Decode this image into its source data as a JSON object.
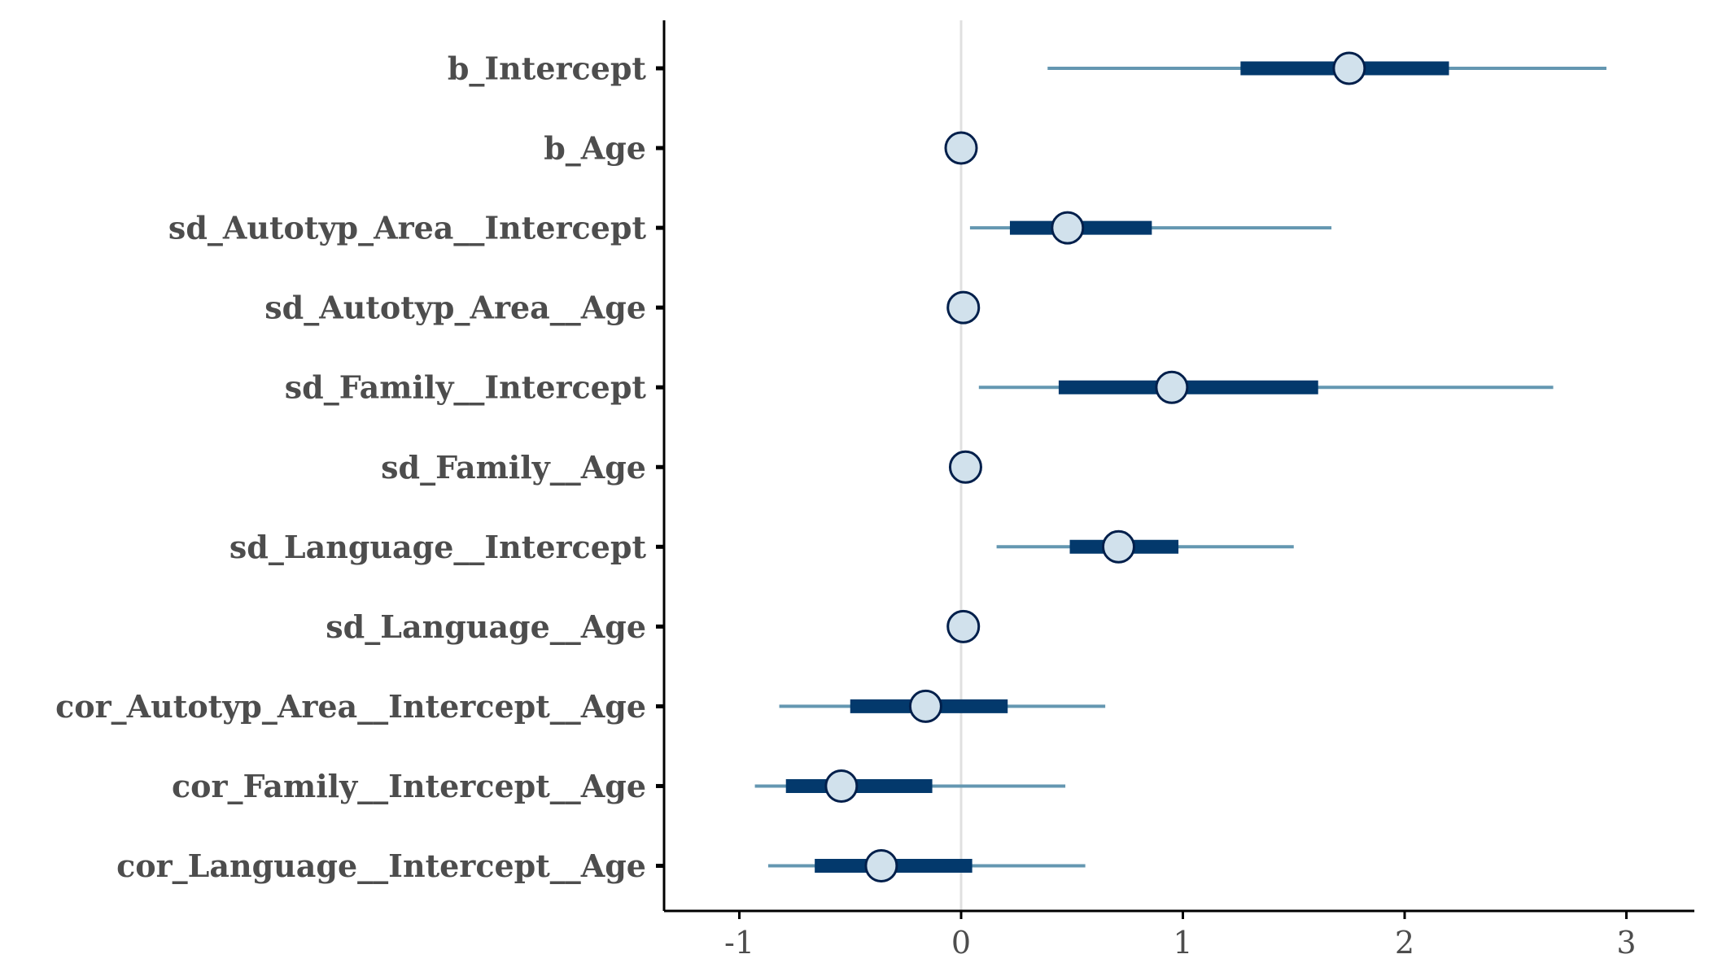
{
  "chart_data": {
    "type": "interval",
    "title": "",
    "xlabel": "",
    "ylabel": "",
    "xlim": [
      -1.35,
      3.3
    ],
    "x_ticks": [
      -1,
      0,
      1,
      2,
      3
    ],
    "x_tick_labels": [
      "-1",
      "0",
      "1",
      "2",
      "3"
    ],
    "reference_line": 0,
    "grid": false,
    "parameters": [
      {
        "label": "b_Intercept",
        "median": 1.75,
        "inner": [
          1.26,
          2.2
        ],
        "outer": [
          0.39,
          2.91
        ]
      },
      {
        "label": "b_Age",
        "median": 0.0,
        "inner": [
          0.0,
          0.0
        ],
        "outer": [
          0.0,
          0.0
        ]
      },
      {
        "label": "sd_Autotyp_Area__Intercept",
        "median": 0.48,
        "inner": [
          0.22,
          0.86
        ],
        "outer": [
          0.04,
          1.67
        ]
      },
      {
        "label": "sd_Autotyp_Area__Age",
        "median": 0.01,
        "inner": [
          0.01,
          0.01
        ],
        "outer": [
          0.01,
          0.01
        ]
      },
      {
        "label": "sd_Family__Intercept",
        "median": 0.95,
        "inner": [
          0.44,
          1.61
        ],
        "outer": [
          0.08,
          2.67
        ]
      },
      {
        "label": "sd_Family__Age",
        "median": 0.02,
        "inner": [
          0.02,
          0.02
        ],
        "outer": [
          0.02,
          0.02
        ]
      },
      {
        "label": "sd_Language__Intercept",
        "median": 0.71,
        "inner": [
          0.49,
          0.98
        ],
        "outer": [
          0.16,
          1.5
        ]
      },
      {
        "label": "sd_Language__Age",
        "median": 0.01,
        "inner": [
          0.01,
          0.01
        ],
        "outer": [
          0.01,
          0.01
        ]
      },
      {
        "label": "cor_Autotyp_Area__Intercept__Age",
        "median": -0.16,
        "inner": [
          -0.5,
          0.21
        ],
        "outer": [
          -0.82,
          0.65
        ]
      },
      {
        "label": "cor_Family__Intercept__Age",
        "median": -0.54,
        "inner": [
          -0.79,
          -0.13
        ],
        "outer": [
          -0.93,
          0.47
        ]
      },
      {
        "label": "cor_Language__Intercept__Age",
        "median": -0.36,
        "inner": [
          -0.66,
          0.05
        ],
        "outer": [
          -0.87,
          0.56
        ]
      }
    ],
    "colors": {
      "outer_interval": "#6497b1",
      "inner_interval": "#03396c",
      "point_fill": "#d1e1ec",
      "point_stroke": "#011f4b",
      "reference_line": "#e0e0e0",
      "axis": "#000000",
      "text": "#4d4d4d"
    }
  }
}
